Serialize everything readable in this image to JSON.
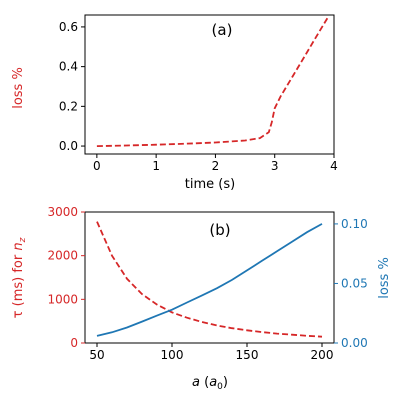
{
  "colors": {
    "red": "#d62728",
    "blue": "#1f77b4",
    "axis": "#000000"
  },
  "chart_data": [
    {
      "type": "line",
      "panel_label": "(a)",
      "xlabel": "time (s)",
      "ylabel": "loss %",
      "xlim": [
        -0.2,
        4.0
      ],
      "ylim": [
        -0.04,
        0.66
      ],
      "xticks": [
        0,
        1,
        2,
        3,
        4
      ],
      "xtick_labels": [
        "0",
        "1",
        "2",
        "3",
        "4"
      ],
      "yticks": [
        0.0,
        0.2,
        0.4,
        0.6
      ],
      "ytick_labels": [
        "0.0",
        "0.2",
        "0.4",
        "0.6"
      ],
      "series": [
        {
          "style": "dashed",
          "color": "#d62728",
          "x": [
            0,
            0.5,
            1.0,
            1.5,
            2.0,
            2.5,
            2.75,
            2.9,
            2.95,
            3.0,
            3.1,
            3.3,
            3.5,
            3.7,
            3.9
          ],
          "y": [
            0.0,
            0.003,
            0.007,
            0.012,
            0.018,
            0.028,
            0.04,
            0.07,
            0.12,
            0.19,
            0.25,
            0.35,
            0.45,
            0.55,
            0.65
          ]
        }
      ]
    },
    {
      "type": "line",
      "panel_label": "(b)",
      "xlabel": "a (a0)",
      "xlabel_parts": {
        "var": "a",
        "open": " (",
        "base": "a",
        "sub": "0",
        "close": ")"
      },
      "ylabel_left": "τ (ms) for nz",
      "ylabel_left_parts": {
        "main": "τ (ms) for ",
        "var": "n",
        "sub": "z"
      },
      "ylabel_right": "loss %",
      "xlim": [
        42,
        208
      ],
      "ylim_left": [
        0,
        3000
      ],
      "ylim_right": [
        0,
        0.11
      ],
      "xticks": [
        50,
        100,
        150,
        200
      ],
      "xtick_labels": [
        "50",
        "100",
        "150",
        "200"
      ],
      "yticks_left": [
        0,
        1000,
        2000,
        3000
      ],
      "ytick_labels_left": [
        "0",
        "1000",
        "2000",
        "3000"
      ],
      "yticks_right": [
        0.0,
        0.05,
        0.1
      ],
      "ytick_labels_right": [
        "0.00",
        "0.05",
        "0.10"
      ],
      "series": [
        {
          "axis": "left",
          "style": "dashed",
          "color": "#d62728",
          "x": [
            50,
            60,
            70,
            80,
            90,
            100,
            110,
            120,
            130,
            140,
            150,
            160,
            170,
            180,
            190,
            200
          ],
          "y": [
            2780,
            2000,
            1470,
            1120,
            880,
            700,
            580,
            480,
            400,
            340,
            290,
            250,
            215,
            190,
            165,
            145
          ]
        },
        {
          "axis": "right",
          "style": "solid",
          "color": "#1f77b4",
          "x": [
            50,
            60,
            70,
            80,
            90,
            100,
            110,
            120,
            130,
            140,
            150,
            160,
            170,
            180,
            190,
            200
          ],
          "y": [
            0.006,
            0.009,
            0.013,
            0.018,
            0.023,
            0.028,
            0.034,
            0.04,
            0.046,
            0.053,
            0.061,
            0.069,
            0.077,
            0.085,
            0.093,
            0.1
          ]
        }
      ]
    }
  ]
}
